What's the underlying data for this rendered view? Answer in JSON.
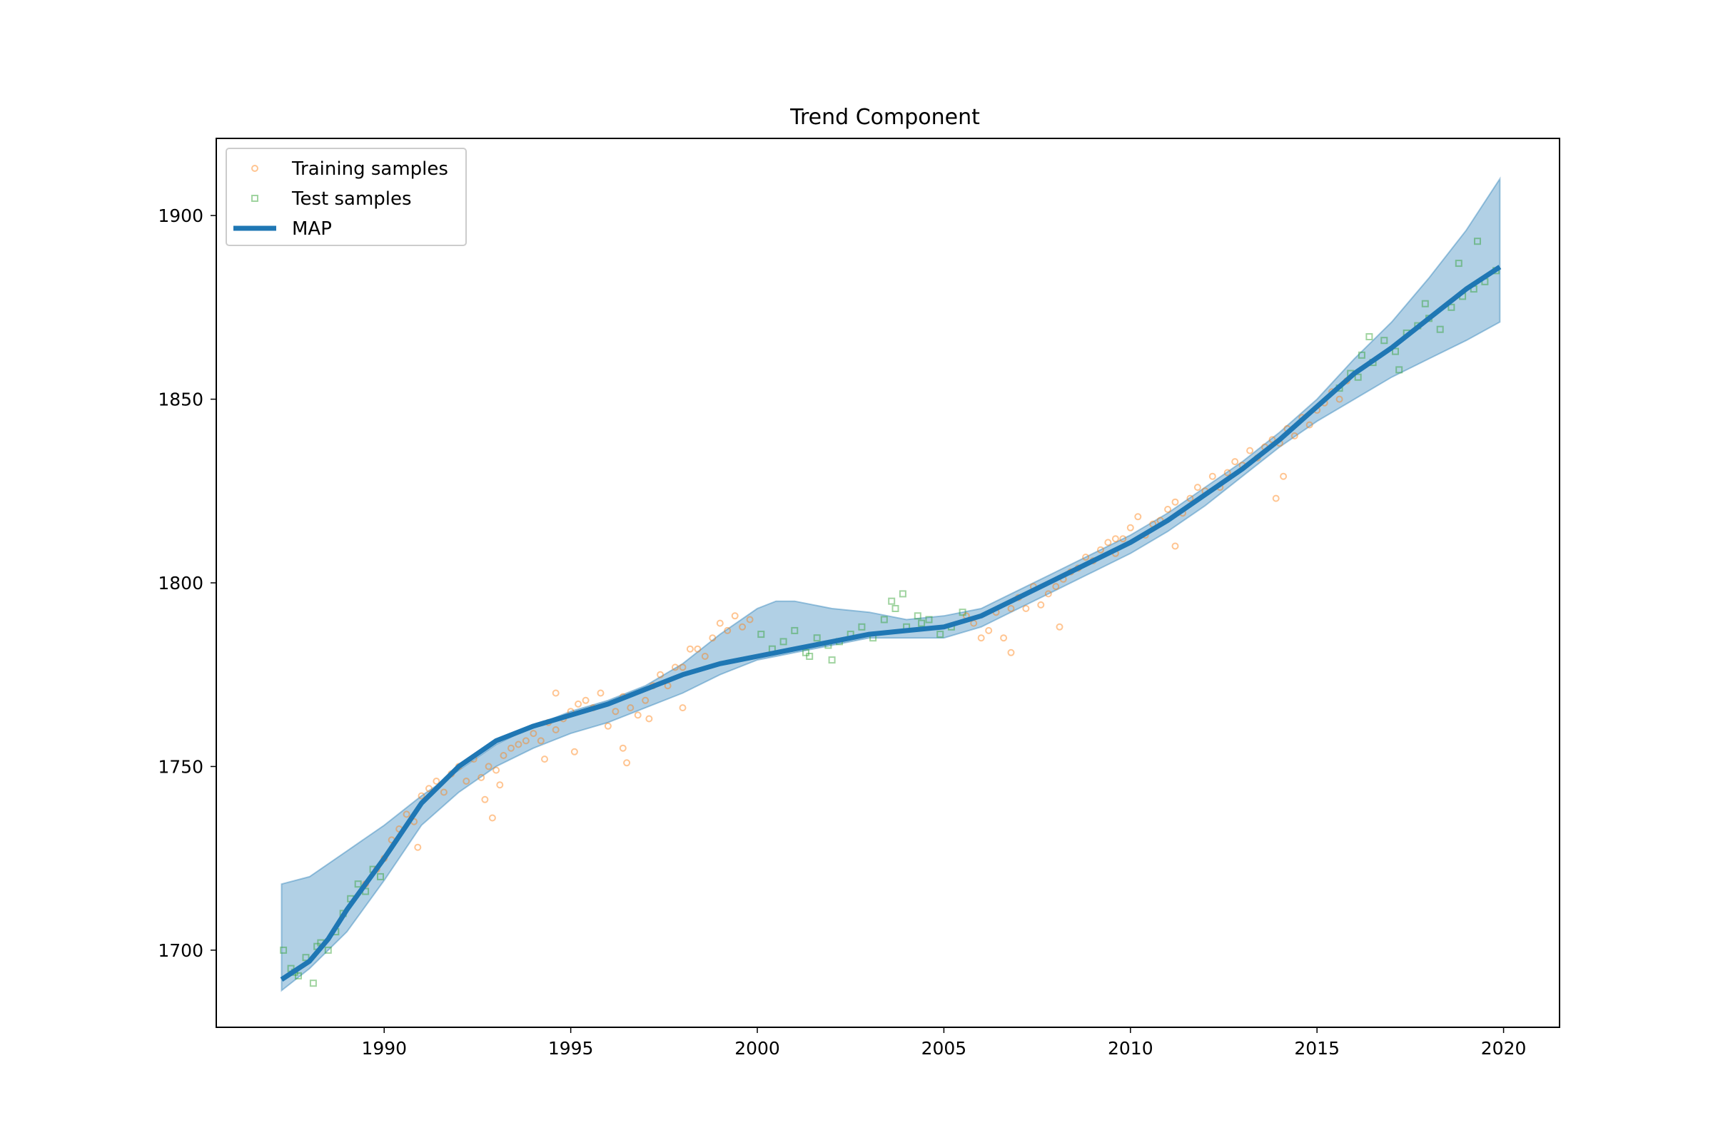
{
  "chart_data": {
    "type": "line",
    "title": "Trend Component",
    "xlabel": "",
    "ylabel": "",
    "xlim": [
      1985.5,
      2021.5
    ],
    "ylim": [
      1679,
      1921
    ],
    "x_ticks": [
      1990,
      1995,
      2000,
      2005,
      2010,
      2015,
      2020
    ],
    "y_ticks": [
      1700,
      1750,
      1800,
      1850,
      1900
    ],
    "grid": false,
    "legend_position": "top-left",
    "legend": [
      {
        "label": "Training samples",
        "marker": "circle",
        "color": "#ff7f0e"
      },
      {
        "label": "Test samples",
        "marker": "square",
        "color": "#2ca02c"
      },
      {
        "label": "MAP",
        "marker": "line",
        "color": "#1f77b4"
      }
    ],
    "colors": {
      "map": "#1f77b4",
      "band": "#1f77b4",
      "training": "#ff7f0e",
      "test": "#2ca02c"
    },
    "series": [
      {
        "name": "MAP",
        "x": [
          1987.25,
          1988,
          1988.5,
          1989,
          1990,
          1991,
          1992,
          1993,
          1994,
          1995,
          1996,
          1997,
          1998,
          1999,
          2000,
          2001,
          2002,
          2003,
          2004,
          2005,
          2006,
          2007,
          2008,
          2009,
          2010,
          2011,
          2012,
          2013,
          2014,
          2015,
          2016,
          2017,
          2018,
          2019,
          2019.9
        ],
        "y": [
          1692,
          1697,
          1703,
          1711,
          1725,
          1740,
          1750,
          1757,
          1761,
          1764,
          1767,
          1771,
          1775,
          1778,
          1780,
          1782,
          1784,
          1786,
          1787,
          1788,
          1791,
          1796,
          1801,
          1806,
          1811,
          1817,
          1824,
          1831,
          1839,
          1848,
          1857,
          1864,
          1872,
          1880,
          1886
        ]
      }
    ],
    "uncertainty_band": {
      "x": [
        1987.25,
        1988,
        1989,
        1990,
        1991,
        1992,
        1993,
        1994,
        1995,
        1996,
        1997,
        1998,
        1999,
        2000,
        2000.5,
        2001,
        2002,
        2003,
        2004,
        2005,
        2006,
        2007,
        2008,
        2009,
        2010,
        2011,
        2012,
        2013,
        2014,
        2015,
        2016,
        2017,
        2018,
        2019,
        2019.9
      ],
      "upper": [
        1718,
        1720,
        1727,
        1734,
        1742,
        1749,
        1756,
        1761,
        1765,
        1768,
        1772,
        1778,
        1786,
        1793,
        1795,
        1795,
        1793,
        1792,
        1790,
        1791,
        1793,
        1798,
        1803,
        1808,
        1813,
        1819,
        1826,
        1833,
        1841,
        1850,
        1861,
        1871,
        1883,
        1896,
        1910
      ],
      "lower": [
        1689,
        1695,
        1705,
        1719,
        1734,
        1743,
        1750,
        1755,
        1759,
        1762,
        1766,
        1770,
        1775,
        1779,
        1780,
        1781,
        1783,
        1785,
        1785,
        1785,
        1788,
        1793,
        1798,
        1803,
        1808,
        1814,
        1821,
        1829,
        1837,
        1844,
        1850,
        1856,
        1861,
        1866,
        1871
      ]
    },
    "scatter": [
      {
        "name": "Training samples",
        "x": [
          1989.5,
          1989.8,
          1990.0,
          1990.2,
          1990.4,
          1990.6,
          1990.8,
          1991.0,
          1991.2,
          1991.4,
          1991.6,
          1991.8,
          1992.0,
          1992.2,
          1992.4,
          1992.6,
          1992.8,
          1993.0,
          1993.2,
          1993.4,
          1993.6,
          1993.8,
          1994.0,
          1994.2,
          1994.4,
          1994.6,
          1994.8,
          1995.0,
          1995.2,
          1995.4,
          1995.6,
          1995.8,
          1996.0,
          1996.2,
          1996.4,
          1996.6,
          1996.8,
          1997.0,
          1997.2,
          1997.4,
          1997.6,
          1997.8,
          1998.0,
          1998.2,
          1998.4,
          1998.6,
          1998.8,
          1999.0,
          1999.2,
          1999.4,
          1999.6,
          1999.8,
          2005.6,
          2005.8,
          2006.0,
          2006.2,
          2006.4,
          2006.6,
          2006.8,
          2007.0,
          2007.2,
          2007.4,
          2007.6,
          2007.8,
          2008.0,
          2008.2,
          2008.4,
          2008.6,
          2008.8,
          2009.0,
          2009.2,
          2009.4,
          2009.6,
          2009.8,
          2010.0,
          2010.2,
          2010.4,
          2010.6,
          2010.8,
          2011.0,
          2011.2,
          2011.4,
          2011.6,
          2011.8,
          2012.0,
          2012.2,
          2012.4,
          2012.6,
          2012.8,
          2013.0,
          2013.2,
          2013.4,
          2013.6,
          2013.8,
          2014.0,
          2014.2,
          2014.4,
          2014.6,
          2014.8,
          2015.0,
          2015.2,
          2015.4,
          2015.6,
          2015.8,
          1992.7,
          1992.9,
          1996.4,
          1996.5,
          1997.1,
          1994.3,
          1994.6,
          2013.9,
          2014.1,
          2006.8,
          2011.2,
          2008.1,
          1993.1,
          1998.0,
          1990.9,
          1995.1,
          2009.6
        ],
        "y": [
          1718,
          1722,
          1725,
          1730,
          1733,
          1737,
          1735,
          1742,
          1744,
          1746,
          1743,
          1748,
          1750,
          1746,
          1752,
          1747,
          1750,
          1749,
          1753,
          1755,
          1756,
          1757,
          1759,
          1757,
          1762,
          1760,
          1763,
          1765,
          1767,
          1768,
          1766,
          1770,
          1761,
          1765,
          1769,
          1766,
          1764,
          1768,
          1772,
          1775,
          1772,
          1777,
          1777,
          1782,
          1782,
          1780,
          1785,
          1789,
          1787,
          1791,
          1788,
          1790,
          1791,
          1789,
          1785,
          1787,
          1792,
          1785,
          1793,
          1796,
          1793,
          1799,
          1794,
          1797,
          1799,
          1801,
          1803,
          1804,
          1807,
          1806,
          1809,
          1811,
          1808,
          1812,
          1815,
          1818,
          1813,
          1816,
          1817,
          1820,
          1822,
          1819,
          1823,
          1826,
          1825,
          1829,
          1826,
          1830,
          1833,
          1832,
          1836,
          1834,
          1837,
          1839,
          1838,
          1842,
          1840,
          1845,
          1843,
          1847,
          1849,
          1852,
          1850,
          1855,
          1741,
          1736,
          1755,
          1751,
          1763,
          1752,
          1770,
          1823,
          1829,
          1781,
          1810,
          1788,
          1745,
          1766,
          1728,
          1754,
          1812
        ]
      },
      {
        "name": "Test samples",
        "x": [
          1987.3,
          1987.5,
          1987.7,
          1987.9,
          1988.1,
          1988.3,
          1988.5,
          1988.7,
          1988.9,
          1989.1,
          1989.3,
          1989.5,
          1989.7,
          1989.9,
          1987.6,
          1988.2,
          2000.1,
          2000.4,
          2000.7,
          2001.0,
          2001.3,
          2001.6,
          2001.9,
          2002.2,
          2002.5,
          2002.8,
          2003.1,
          2003.4,
          2003.7,
          2004.0,
          2004.3,
          2004.6,
          2004.9,
          2005.2,
          2005.5,
          2003.6,
          2003.9,
          2004.4,
          2001.4,
          2002.0,
          2015.6,
          2015.9,
          2016.2,
          2016.5,
          2016.8,
          2017.1,
          2017.4,
          2017.7,
          2018.0,
          2018.3,
          2018.6,
          2018.9,
          2019.2,
          2019.5,
          2019.8,
          2016.4,
          2017.9,
          2018.8,
          2019.3,
          2016.1,
          2017.2
        ],
        "y": [
          1700,
          1695,
          1693,
          1698,
          1691,
          1702,
          1700,
          1705,
          1710,
          1714,
          1718,
          1716,
          1722,
          1720,
          1694,
          1701,
          1786,
          1782,
          1784,
          1787,
          1781,
          1785,
          1783,
          1784,
          1786,
          1788,
          1785,
          1790,
          1793,
          1788,
          1791,
          1790,
          1786,
          1788,
          1792,
          1795,
          1797,
          1789,
          1780,
          1779,
          1853,
          1857,
          1862,
          1860,
          1866,
          1863,
          1868,
          1870,
          1872,
          1869,
          1875,
          1878,
          1880,
          1882,
          1885,
          1867,
          1876,
          1887,
          1893,
          1856,
          1858
        ]
      }
    ]
  }
}
